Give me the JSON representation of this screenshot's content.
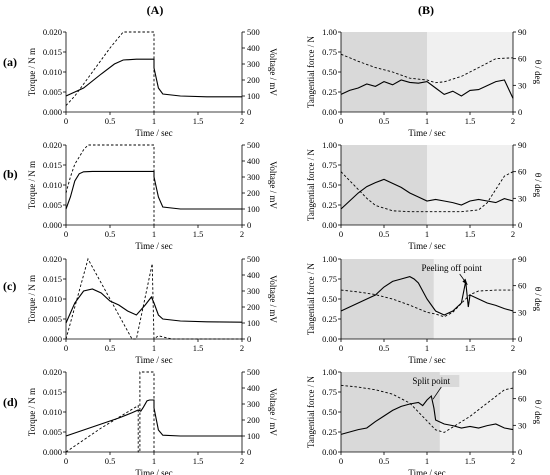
{
  "columns": [
    {
      "id": "A",
      "label": "(A)"
    },
    {
      "id": "B",
      "label": "(B)"
    }
  ],
  "row_labels": [
    "(a)",
    "(b)",
    "(c)",
    "(d)"
  ],
  "axes_text": {
    "torque_label": "Torque / N m",
    "voltage_label": "Voltage / mV",
    "tangential_label": "Tangential force / N",
    "theta_label": "θ / deg",
    "time_label": "Time / sec"
  },
  "chart_data": [
    {
      "id": "A-a",
      "column": "A",
      "row": "(a)",
      "type": "line",
      "xlabel": "Time / sec",
      "ylabel": "Torque / N m",
      "y2label": "Voltage / mV",
      "xlim": [
        0,
        2
      ],
      "ylim": [
        0,
        0.02
      ],
      "y2lim": [
        0,
        500
      ],
      "xticks": [
        0,
        0.5,
        1,
        1.5,
        2
      ],
      "xtick_labels": [
        "0",
        "0.5",
        "1",
        "1.5",
        "2"
      ],
      "yticks": [
        0,
        0.005,
        0.01,
        0.015,
        0.02
      ],
      "ytick_labels": [
        "0.000",
        "0.005",
        "0.010",
        "0.015",
        "0.020"
      ],
      "y2ticks": [
        0,
        100,
        200,
        300,
        400,
        500
      ],
      "y2tick_labels": [
        "0",
        "100",
        "200",
        "300",
        "400",
        "500"
      ],
      "series": [
        {
          "style": "solid",
          "axis": "left",
          "x": [
            0,
            0.2,
            0.4,
            0.55,
            0.65,
            0.8,
            1.0,
            1.0,
            1.05,
            1.1,
            1.3,
            1.6,
            2.0
          ],
          "y": [
            0.004,
            0.006,
            0.0095,
            0.012,
            0.013,
            0.0132,
            0.0132,
            0.011,
            0.006,
            0.0045,
            0.004,
            0.0038,
            0.0038
          ]
        },
        {
          "style": "dashed",
          "axis": "right",
          "x": [
            0,
            0.1,
            0.3,
            0.5,
            0.65,
            1.0,
            1.0
          ],
          "y": [
            40,
            100,
            250,
            400,
            500,
            500,
            0
          ]
        }
      ]
    },
    {
      "id": "A-b",
      "column": "A",
      "row": "(b)",
      "type": "line",
      "xlabel": "Time / sec",
      "ylabel": "Torque / N m",
      "y2label": "Voltage / mV",
      "xlim": [
        0,
        2
      ],
      "ylim": [
        0,
        0.02
      ],
      "y2lim": [
        0,
        500
      ],
      "xticks": [
        0,
        0.5,
        1,
        1.5,
        2
      ],
      "xtick_labels": [
        "0",
        "0.5",
        "1",
        "1.5",
        "2"
      ],
      "yticks": [
        0,
        0.005,
        0.01,
        0.015,
        0.02
      ],
      "ytick_labels": [
        "0.000",
        "0.005",
        "0.010",
        "0.015",
        "0.020"
      ],
      "y2ticks": [
        0,
        100,
        200,
        300,
        400,
        500
      ],
      "y2tick_labels": [
        "0",
        "100",
        "200",
        "300",
        "400",
        "500"
      ],
      "series": [
        {
          "style": "solid",
          "axis": "left",
          "x": [
            0,
            0.05,
            0.1,
            0.15,
            0.2,
            0.3,
            0.5,
            0.8,
            1.0,
            1.0,
            1.05,
            1.1,
            1.3,
            1.6,
            2.0
          ],
          "y": [
            0.004,
            0.007,
            0.011,
            0.0128,
            0.0133,
            0.0134,
            0.0134,
            0.0134,
            0.0134,
            0.012,
            0.007,
            0.0045,
            0.004,
            0.004,
            0.004
          ]
        },
        {
          "style": "dashed",
          "axis": "right",
          "x": [
            0,
            0.05,
            0.1,
            0.2,
            0.25,
            1.0,
            1.0
          ],
          "y": [
            200,
            300,
            380,
            470,
            500,
            500,
            0
          ]
        }
      ]
    },
    {
      "id": "A-c",
      "column": "A",
      "row": "(c)",
      "type": "line",
      "xlabel": "Time / sec",
      "ylabel": "Torque / N m",
      "y2label": "Voltage / mV",
      "xlim": [
        0,
        2
      ],
      "ylim": [
        0,
        0.02
      ],
      "y2lim": [
        0,
        500
      ],
      "xticks": [
        0,
        0.5,
        1,
        1.5,
        2
      ],
      "xtick_labels": [
        "0",
        "0.5",
        "1",
        "1.5",
        "2"
      ],
      "yticks": [
        0,
        0.005,
        0.01,
        0.015,
        0.02
      ],
      "ytick_labels": [
        "0.000",
        "0.005",
        "0.010",
        "0.015",
        "0.020"
      ],
      "y2ticks": [
        0,
        100,
        200,
        300,
        400,
        500
      ],
      "y2tick_labels": [
        "0",
        "100",
        "200",
        "300",
        "400",
        "500"
      ],
      "series": [
        {
          "style": "solid",
          "axis": "left",
          "x": [
            0,
            0.1,
            0.2,
            0.3,
            0.4,
            0.5,
            0.6,
            0.7,
            0.8,
            0.9,
            0.97,
            1.0,
            1.05,
            1.1,
            1.3,
            1.6,
            2.0
          ],
          "y": [
            0.004,
            0.009,
            0.012,
            0.0125,
            0.0115,
            0.0095,
            0.0085,
            0.007,
            0.006,
            0.0085,
            0.0105,
            0.009,
            0.006,
            0.005,
            0.0045,
            0.0043,
            0.0042
          ]
        },
        {
          "style": "dashed",
          "axis": "right",
          "x": [
            0,
            0.25,
            0.5,
            0.6,
            0.75,
            0.8,
            0.98,
            1.0,
            1.05,
            1.2,
            2.0
          ],
          "y": [
            0,
            500,
            250,
            150,
            0,
            0,
            470,
            0,
            20,
            0,
            0
          ]
        }
      ]
    },
    {
      "id": "A-d",
      "column": "A",
      "row": "(d)",
      "type": "line",
      "xlabel": "Time / sec",
      "ylabel": "Torque / N m",
      "y2label": "Voltage / mV",
      "xlim": [
        0,
        2
      ],
      "ylim": [
        0,
        0.02
      ],
      "y2lim": [
        0,
        500
      ],
      "xticks": [
        0,
        0.5,
        1,
        1.5,
        2
      ],
      "xtick_labels": [
        "0",
        "0.5",
        "1",
        "1.5",
        "2"
      ],
      "yticks": [
        0,
        0.005,
        0.01,
        0.015,
        0.02
      ],
      "ytick_labels": [
        "0.000",
        "0.005",
        "0.010",
        "0.015",
        "0.020"
      ],
      "y2ticks": [
        0,
        100,
        200,
        300,
        400,
        500
      ],
      "y2tick_labels": [
        "0",
        "100",
        "200",
        "300",
        "400",
        "500"
      ],
      "series": [
        {
          "style": "solid",
          "axis": "left",
          "x": [
            0,
            0.2,
            0.4,
            0.6,
            0.75,
            0.82,
            0.85,
            0.88,
            0.92,
            0.95,
            1.0,
            1.0,
            1.05,
            1.1,
            1.3,
            1.6,
            2.0
          ],
          "y": [
            0.004,
            0.0055,
            0.007,
            0.0085,
            0.0098,
            0.0105,
            0.0102,
            0.0112,
            0.0128,
            0.013,
            0.013,
            0.011,
            0.0055,
            0.0042,
            0.004,
            0.004,
            0.004
          ]
        },
        {
          "style": "dashed",
          "axis": "right",
          "x": [
            0,
            0.4,
            0.82,
            0.82,
            0.84,
            0.84,
            1.0,
            1.0
          ],
          "y": [
            0,
            150,
            290,
            0,
            0,
            500,
            500,
            0
          ]
        }
      ]
    },
    {
      "id": "B-a",
      "column": "B",
      "row": "(a)",
      "type": "line",
      "xlabel": "Time / sec",
      "ylabel": "Tangential force / N",
      "y2label": "θ / deg",
      "xlim": [
        0,
        2
      ],
      "ylim": [
        0,
        1.0
      ],
      "y2lim": [
        0,
        90
      ],
      "xticks": [
        0,
        0.5,
        1,
        1.5,
        2
      ],
      "xtick_labels": [
        "0",
        "0.5",
        "1",
        "1.5",
        "2"
      ],
      "yticks": [
        0,
        0.25,
        0.5,
        0.75,
        1.0
      ],
      "ytick_labels": [
        "0.00",
        "0.25",
        "0.50",
        "0.75",
        "1.00"
      ],
      "y2ticks": [
        0,
        30,
        60,
        90
      ],
      "y2tick_labels": [
        "0",
        "30",
        "60",
        "90"
      ],
      "shaded_range": [
        0,
        1
      ],
      "series": [
        {
          "style": "solid",
          "axis": "left",
          "x": [
            0,
            0.1,
            0.2,
            0.3,
            0.4,
            0.5,
            0.6,
            0.7,
            0.8,
            0.9,
            1.0,
            1.1,
            1.2,
            1.3,
            1.4,
            1.5,
            1.6,
            1.7,
            1.8,
            1.9,
            2.0
          ],
          "y": [
            0.22,
            0.27,
            0.3,
            0.35,
            0.32,
            0.38,
            0.34,
            0.4,
            0.37,
            0.36,
            0.38,
            0.3,
            0.22,
            0.26,
            0.2,
            0.27,
            0.28,
            0.33,
            0.38,
            0.4,
            0.17
          ]
        },
        {
          "style": "dashed",
          "axis": "right",
          "x": [
            0,
            0.2,
            0.4,
            0.6,
            0.8,
            1.0,
            1.1,
            1.2,
            1.4,
            1.6,
            1.8,
            2.0
          ],
          "y": [
            65,
            57,
            50,
            45,
            38,
            36,
            33,
            34,
            40,
            50,
            60,
            61
          ]
        }
      ]
    },
    {
      "id": "B-b",
      "column": "B",
      "row": "(b)",
      "type": "line",
      "xlabel": "Time / sec",
      "ylabel": "Tangential force / N",
      "y2label": "θ / deg",
      "xlim": [
        0,
        2
      ],
      "ylim": [
        0,
        1.0
      ],
      "y2lim": [
        0,
        90
      ],
      "xticks": [
        0,
        0.5,
        1,
        1.5,
        2
      ],
      "xtick_labels": [
        "0",
        "0.5",
        "1",
        "1.5",
        "2"
      ],
      "yticks": [
        0,
        0.25,
        0.5,
        0.75,
        1.0
      ],
      "ytick_labels": [
        "0.00",
        "0.25",
        "0.50",
        "0.75",
        "1.00"
      ],
      "y2ticks": [
        0,
        30,
        60,
        90
      ],
      "y2tick_labels": [
        "0",
        "30",
        "60",
        "90"
      ],
      "shaded_range": [
        0,
        1
      ],
      "series": [
        {
          "style": "solid",
          "axis": "left",
          "x": [
            0,
            0.1,
            0.2,
            0.3,
            0.4,
            0.5,
            0.6,
            0.7,
            0.8,
            0.9,
            1.0,
            1.1,
            1.2,
            1.3,
            1.4,
            1.5,
            1.6,
            1.7,
            1.8,
            1.9,
            2.0
          ],
          "y": [
            0.2,
            0.3,
            0.4,
            0.48,
            0.53,
            0.57,
            0.52,
            0.47,
            0.4,
            0.35,
            0.3,
            0.32,
            0.3,
            0.28,
            0.25,
            0.3,
            0.32,
            0.3,
            0.28,
            0.33,
            0.3
          ]
        },
        {
          "style": "dashed",
          "axis": "right",
          "x": [
            0,
            0.1,
            0.2,
            0.3,
            0.4,
            0.6,
            0.8,
            1.0,
            1.2,
            1.4,
            1.6,
            1.7,
            1.8,
            1.9,
            2.0
          ],
          "y": [
            60,
            50,
            40,
            30,
            22,
            16,
            15,
            15,
            15,
            15,
            17,
            25,
            40,
            55,
            60
          ]
        }
      ]
    },
    {
      "id": "B-c",
      "column": "B",
      "row": "(c)",
      "type": "line",
      "xlabel": "Time / sec",
      "ylabel": "Tangential force / N",
      "y2label": "θ / deg",
      "xlim": [
        0,
        2
      ],
      "ylim": [
        0,
        1.0
      ],
      "y2lim": [
        0,
        90
      ],
      "xticks": [
        0,
        0.5,
        1,
        1.5,
        2
      ],
      "xtick_labels": [
        "0",
        "0.5",
        "1",
        "1.5",
        "2"
      ],
      "yticks": [
        0,
        0.25,
        0.5,
        0.75,
        1.0
      ],
      "ytick_labels": [
        "0.00",
        "0.25",
        "0.50",
        "0.75",
        "1.00"
      ],
      "y2ticks": [
        0,
        30,
        60,
        90
      ],
      "y2tick_labels": [
        "0",
        "30",
        "60",
        "90"
      ],
      "shaded_range": [
        0,
        1.08
      ],
      "annotations": [
        {
          "text": "Peeling off point",
          "x": 1.45,
          "y": 0.6
        }
      ],
      "series": [
        {
          "style": "solid",
          "axis": "left",
          "x": [
            0,
            0.1,
            0.2,
            0.3,
            0.4,
            0.5,
            0.6,
            0.7,
            0.8,
            0.85,
            0.9,
            1.0,
            1.1,
            1.2,
            1.3,
            1.4,
            1.45,
            1.48,
            1.5,
            1.6,
            1.7,
            1.8,
            1.9,
            2.0
          ],
          "y": [
            0.35,
            0.4,
            0.45,
            0.5,
            0.55,
            0.65,
            0.72,
            0.75,
            0.78,
            0.75,
            0.7,
            0.5,
            0.35,
            0.3,
            0.35,
            0.45,
            0.72,
            0.4,
            0.55,
            0.5,
            0.45,
            0.42,
            0.38,
            0.35
          ]
        },
        {
          "style": "dashed",
          "axis": "right",
          "x": [
            0,
            0.2,
            0.4,
            0.6,
            0.8,
            1.0,
            1.1,
            1.2,
            1.3,
            1.4,
            1.5,
            1.6,
            1.8,
            2.0
          ],
          "y": [
            55,
            53,
            50,
            45,
            38,
            30,
            28,
            25,
            30,
            40,
            50,
            54,
            55,
            55
          ]
        }
      ]
    },
    {
      "id": "B-d",
      "column": "B",
      "row": "(d)",
      "type": "line",
      "xlabel": "Time / sec",
      "ylabel": "Tangential force / N",
      "y2label": "θ / deg",
      "xlim": [
        0,
        2
      ],
      "ylim": [
        0,
        1.0
      ],
      "y2lim": [
        0,
        90
      ],
      "xticks": [
        0,
        0.5,
        1,
        1.5,
        2
      ],
      "xtick_labels": [
        "0",
        "0.5",
        "1",
        "1.5",
        "2"
      ],
      "yticks": [
        0,
        0.25,
        0.5,
        0.75,
        1.0
      ],
      "ytick_labels": [
        "0.00",
        "0.25",
        "0.50",
        "0.75",
        "1.00"
      ],
      "y2ticks": [
        0,
        30,
        60,
        90
      ],
      "y2tick_labels": [
        "0",
        "30",
        "60",
        "90"
      ],
      "shaded_range": [
        0,
        1.15
      ],
      "annotations": [
        {
          "text": "Split point",
          "x": 1.05,
          "y": 0.75
        }
      ],
      "series": [
        {
          "style": "solid",
          "axis": "left",
          "x": [
            0,
            0.1,
            0.2,
            0.3,
            0.4,
            0.5,
            0.6,
            0.7,
            0.8,
            0.9,
            0.95,
            1.0,
            1.05,
            1.08,
            1.1,
            1.2,
            1.3,
            1.4,
            1.5,
            1.6,
            1.7,
            1.8,
            1.9,
            2.0
          ],
          "y": [
            0.22,
            0.25,
            0.28,
            0.3,
            0.38,
            0.45,
            0.52,
            0.57,
            0.6,
            0.62,
            0.58,
            0.65,
            0.7,
            0.55,
            0.4,
            0.35,
            0.33,
            0.3,
            0.32,
            0.3,
            0.33,
            0.35,
            0.3,
            0.28
          ]
        },
        {
          "style": "dashed",
          "axis": "right",
          "x": [
            0,
            0.2,
            0.4,
            0.6,
            0.8,
            1.0,
            1.1,
            1.2,
            1.3,
            1.5,
            1.7,
            1.9,
            2.0
          ],
          "y": [
            75,
            73,
            70,
            65,
            55,
            35,
            25,
            22,
            28,
            40,
            55,
            70,
            72
          ]
        }
      ]
    }
  ]
}
